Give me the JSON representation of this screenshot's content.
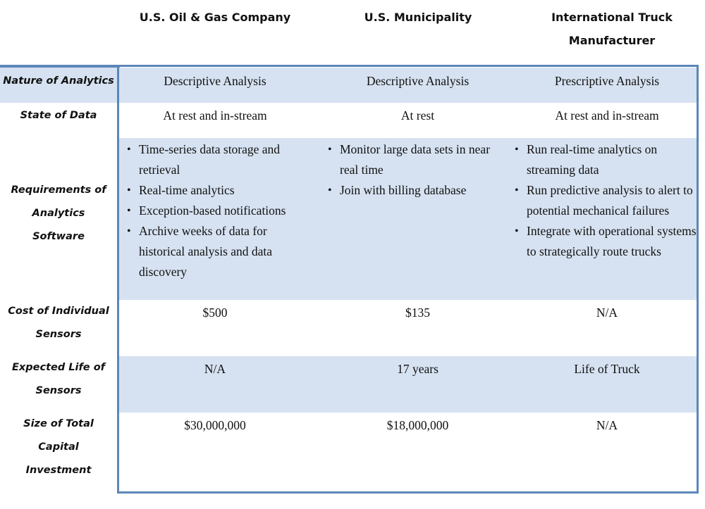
{
  "columns": [
    "U.S. Oil & Gas Company",
    "U.S. Municipality",
    "International Truck Manufacturer"
  ],
  "rows": [
    {
      "label": "Nature of Analytics",
      "values": [
        "Descriptive Analysis",
        "Descriptive Analysis",
        "Prescriptive Analysis"
      ]
    },
    {
      "label": "State of Data",
      "values": [
        "At rest and in-stream",
        "At rest",
        "At rest and in-stream"
      ]
    },
    {
      "label": "Requirements of Analytics Software",
      "bullets": [
        [
          "Time-series data storage and retrieval",
          "Real-time analytics",
          "Exception-based notifications",
          "Archive weeks of data for historical analysis and data discovery"
        ],
        [
          "Monitor large data sets in near real time",
          "Join with billing database"
        ],
        [
          "Run real-time analytics on streaming data",
          "Run predictive analysis to alert to potential mechanical failures",
          "Integrate with operational systems to strategically route trucks"
        ]
      ]
    },
    {
      "label": "Cost of Individual Sensors",
      "values": [
        "$500",
        "$135",
        "N/A"
      ]
    },
    {
      "label": "Expected Life of Sensors",
      "values": [
        "N/A",
        "17 years",
        "Life of Truck"
      ]
    },
    {
      "label": "Size of Total Capital Investment",
      "values": [
        "$30,000,000",
        "$18,000,000",
        "N/A"
      ]
    }
  ]
}
